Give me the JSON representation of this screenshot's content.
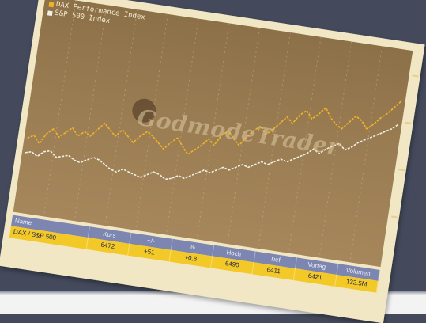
{
  "legend": {
    "items": [
      {
        "label": "DAX Performance Index",
        "color": "#f0b428"
      },
      {
        "label": "S&P 500 Index",
        "color": "#f2efe6"
      }
    ]
  },
  "watermark": "GodmodeTrader",
  "colors": {
    "background": "#444a5c",
    "card": "#f2e7c4",
    "plot": "#9a7c52",
    "series_a": "#f0b428",
    "series_b": "#f2efe6",
    "table_header": "#7d86b0",
    "table_row": "#f3c928"
  },
  "table": {
    "headers": [
      "Name",
      "Kurs",
      "+/-",
      "%",
      "Hoch",
      "Tief",
      "Vortag",
      "Volumen"
    ],
    "rows": [
      [
        "DAX / S&P 500",
        "6472",
        "+51",
        "+0,8",
        "6490",
        "6411",
        "6421",
        "132.5M"
      ]
    ]
  },
  "chart_data": {
    "type": "line",
    "title": "",
    "xlabel": "",
    "ylabel": "",
    "grid": true,
    "legend_position": "top-left",
    "x": [
      0,
      1,
      2,
      3,
      4,
      5,
      6,
      7,
      8,
      9,
      10,
      11,
      12,
      13,
      14,
      15,
      16,
      17,
      18,
      19,
      20,
      21,
      22,
      23,
      24,
      25,
      26,
      27,
      28,
      29,
      30,
      31,
      32,
      33,
      34,
      35,
      36,
      37,
      38,
      39,
      40,
      41,
      42,
      43,
      44,
      45,
      46,
      47,
      48,
      49,
      50,
      51,
      52,
      53,
      54,
      55,
      56,
      57,
      58,
      59
    ],
    "ylim": [
      0,
      100
    ],
    "series": [
      {
        "name": "DAX Performance Index",
        "values": [
          38,
          40,
          36,
          42,
          45,
          41,
          44,
          47,
          43,
          46,
          44,
          48,
          52,
          49,
          46,
          50,
          47,
          44,
          48,
          51,
          49,
          46,
          43,
          47,
          50,
          46,
          42,
          45,
          48,
          52,
          49,
          55,
          58,
          54,
          51,
          56,
          60,
          63,
          59,
          62,
          66,
          70,
          67,
          72,
          75,
          71,
          74,
          78,
          73,
          70,
          68,
          72,
          76,
          74,
          70,
          73,
          77,
          80,
          84,
          88
        ]
      },
      {
        "name": "S&P 500 Index",
        "values": [
          30,
          31,
          29,
          32,
          33,
          30,
          31,
          32,
          30,
          29,
          31,
          33,
          32,
          30,
          28,
          27,
          29,
          28,
          27,
          26,
          28,
          30,
          29,
          27,
          28,
          30,
          29,
          31,
          33,
          35,
          34,
          36,
          38,
          37,
          39,
          41,
          40,
          42,
          44,
          43,
          45,
          47,
          46,
          48,
          50,
          52,
          55,
          53,
          56,
          58,
          60,
          57,
          59,
          62,
          64,
          66,
          68,
          70,
          72,
          75
        ]
      }
    ]
  }
}
